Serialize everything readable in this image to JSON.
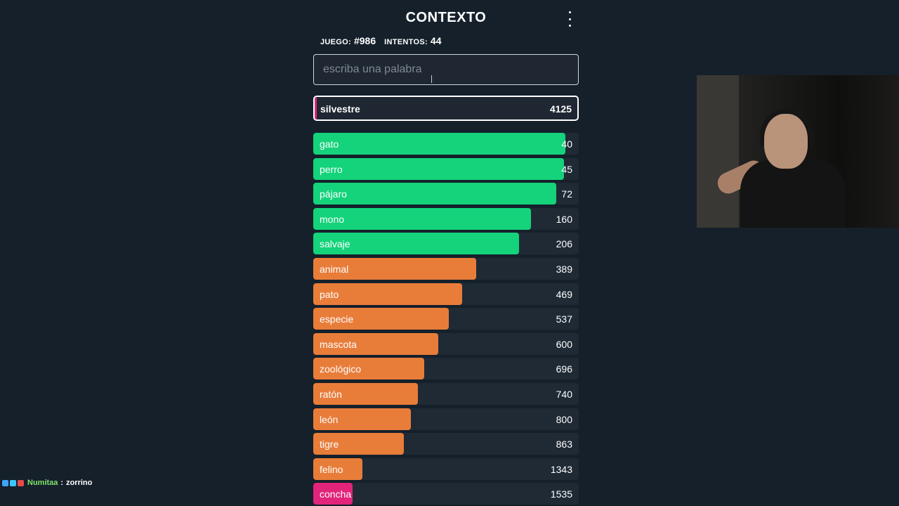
{
  "game": {
    "title": "CONTEXTO",
    "game_label": "JUEGO:",
    "game_number": "#986",
    "attempts_label": "INTENTOS:",
    "attempts": "44",
    "input": {
      "placeholder": "escriba una palabra",
      "value": ""
    },
    "last_guess": {
      "word": "silvestre",
      "rank": "4125",
      "color": "#e2247a"
    },
    "guesses": [
      {
        "word": "gato",
        "rank": "40",
        "color": "#14d37b",
        "fill": 0.95
      },
      {
        "word": "perro",
        "rank": "45",
        "color": "#14d37b",
        "fill": 0.945
      },
      {
        "word": "pájaro",
        "rank": "72",
        "color": "#14d37b",
        "fill": 0.915
      },
      {
        "word": "mono",
        "rank": "160",
        "color": "#14d37b",
        "fill": 0.82
      },
      {
        "word": "salvaje",
        "rank": "206",
        "color": "#14d37b",
        "fill": 0.775
      },
      {
        "word": "animal",
        "rank": "389",
        "color": "#e87d3a",
        "fill": 0.615
      },
      {
        "word": "pato",
        "rank": "469",
        "color": "#e87d3a",
        "fill": 0.56
      },
      {
        "word": "especie",
        "rank": "537",
        "color": "#e87d3a",
        "fill": 0.51
      },
      {
        "word": "mascota",
        "rank": "600",
        "color": "#e87d3a",
        "fill": 0.47
      },
      {
        "word": "zoológico",
        "rank": "696",
        "color": "#e87d3a",
        "fill": 0.418
      },
      {
        "word": "ratón",
        "rank": "740",
        "color": "#e87d3a",
        "fill": 0.395
      },
      {
        "word": "león",
        "rank": "800",
        "color": "#e87d3a",
        "fill": 0.367
      },
      {
        "word": "tigre",
        "rank": "863",
        "color": "#e87d3a",
        "fill": 0.34
      },
      {
        "word": "felino",
        "rank": "1343",
        "color": "#e87d3a",
        "fill": 0.186
      },
      {
        "word": "concha",
        "rank": "1535",
        "color": "#e2247a",
        "fill": 0.148
      }
    ]
  },
  "chat": {
    "badge_colors": [
      "#3fa3ff",
      "#37c7ff",
      "#e64a4a"
    ],
    "username": "Numitaa",
    "separator": ":",
    "message": "zorrino"
  }
}
